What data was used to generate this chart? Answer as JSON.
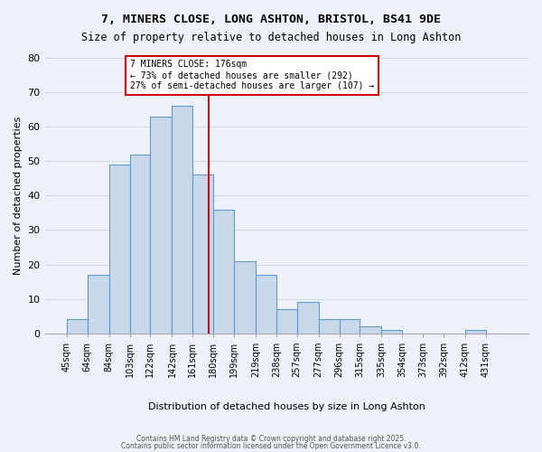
{
  "title1": "7, MINERS CLOSE, LONG ASHTON, BRISTOL, BS41 9DE",
  "title2": "Size of property relative to detached houses in Long Ashton",
  "xlabel": "Distribution of detached houses by size in Long Ashton",
  "ylabel": "Number of detached properties",
  "categories": [
    "45sqm",
    "64sqm",
    "84sqm",
    "103sqm",
    "122sqm",
    "142sqm",
    "161sqm",
    "180sqm",
    "199sqm",
    "219sqm",
    "238sqm",
    "257sqm",
    "277sqm",
    "296sqm",
    "315sqm",
    "335sqm",
    "354sqm",
    "373sqm",
    "392sqm",
    "412sqm",
    "431sqm"
  ],
  "values": [
    4,
    17,
    49,
    52,
    63,
    66,
    46,
    36,
    21,
    17,
    7,
    9,
    4,
    4,
    2,
    1,
    0,
    0,
    0,
    1,
    0
  ],
  "bar_color": "#c8d8e8",
  "bar_edge_color": "#5b9bd5",
  "reference_line_x": 176,
  "reference_line_label": "7 MINERS CLOSE: 176sqm",
  "annotation_line2": "← 73% of detached houses are smaller (292)",
  "annotation_line3": "27% of semi-detached houses are larger (107) →",
  "annotation_box_color": "#ffffff",
  "annotation_box_edge_color": "#cc0000",
  "ref_line_color": "#cc0000",
  "ylim": [
    0,
    80
  ],
  "yticks": [
    0,
    10,
    20,
    30,
    40,
    50,
    60,
    70,
    80
  ],
  "grid_color": "#d0d8e8",
  "background_color": "#eef2f8",
  "bar_width": 1.0,
  "bin_edges": [
    45,
    64,
    84,
    103,
    122,
    142,
    161,
    180,
    199,
    219,
    238,
    257,
    277,
    296,
    315,
    335,
    354,
    373,
    392,
    412,
    431,
    450
  ],
  "footer1": "Contains HM Land Registry data © Crown copyright and database right 2025.",
  "footer2": "Contains public sector information licensed under the Open Government Licence v3.0."
}
